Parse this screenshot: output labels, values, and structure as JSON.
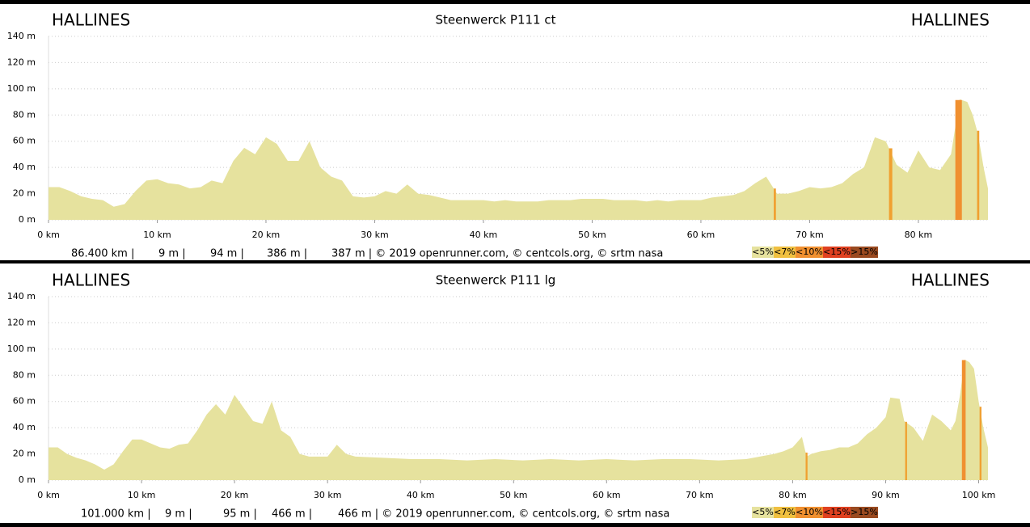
{
  "chart_data": [
    {
      "type": "area",
      "title": "Steenwerck P111 ct",
      "start_label": "HALLINES",
      "end_label": "HALLINES",
      "color": "#e6e29e",
      "x": [
        0,
        1,
        2,
        3,
        4,
        5,
        6,
        7,
        8,
        9,
        10,
        11,
        12,
        13,
        14,
        15,
        16,
        17,
        18,
        19,
        20,
        21,
        22,
        23,
        24,
        25,
        26,
        27,
        28,
        29,
        30,
        31,
        32,
        33,
        34,
        35,
        36,
        37,
        38,
        39,
        40,
        41,
        42,
        43,
        44,
        45,
        46,
        47,
        48,
        49,
        50,
        51,
        52,
        53,
        54,
        55,
        56,
        57,
        58,
        59,
        60,
        61,
        62,
        63,
        64,
        65,
        66,
        67,
        68,
        69,
        70,
        71,
        72,
        73,
        74,
        75,
        76,
        77,
        78,
        79,
        80,
        81,
        82,
        83,
        83.8,
        84.5,
        85,
        85.5,
        86,
        86.4
      ],
      "values": [
        25,
        25,
        22,
        18,
        16,
        15,
        10,
        12,
        22,
        30,
        31,
        28,
        27,
        24,
        25,
        30,
        28,
        45,
        55,
        50,
        63,
        58,
        45,
        45,
        60,
        40,
        33,
        30,
        18,
        17,
        18,
        22,
        20,
        27,
        20,
        19,
        17,
        15,
        15,
        15,
        15,
        14,
        15,
        14,
        14,
        14,
        15,
        15,
        15,
        16,
        16,
        16,
        15,
        15,
        15,
        14,
        15,
        14,
        15,
        15,
        15,
        17,
        18,
        19,
        22,
        28,
        33,
        20,
        20,
        22,
        25,
        24,
        25,
        28,
        35,
        40,
        63,
        60,
        42,
        36,
        53,
        40,
        38,
        50,
        92,
        90,
        80,
        65,
        40,
        24
      ],
      "steep_sections": [
        {
          "from": 66.7,
          "to": 66.9,
          "color": "#f0a030"
        },
        {
          "from": 77.3,
          "to": 77.6,
          "color": "#f0a030"
        },
        {
          "from": 83.4,
          "to": 84.0,
          "color": "#f09030"
        },
        {
          "from": 85.4,
          "to": 85.6,
          "color": "#f0a030"
        }
      ],
      "xlim": [
        0,
        86.4
      ],
      "ylim": [
        0,
        140
      ],
      "xticks": [
        {
          "value": 0,
          "label": "0 km"
        },
        {
          "value": 10,
          "label": "10 km"
        },
        {
          "value": 20,
          "label": "20 km"
        },
        {
          "value": 30,
          "label": "30 km"
        },
        {
          "value": 40,
          "label": "40 km"
        },
        {
          "value": 50,
          "label": "50 km"
        },
        {
          "value": 60,
          "label": "60 km"
        },
        {
          "value": 70,
          "label": "70 km"
        },
        {
          "value": 80,
          "label": "80 km"
        }
      ],
      "yticks": [
        {
          "value": 0,
          "label": "0 m"
        },
        {
          "value": 20,
          "label": "20 m"
        },
        {
          "value": 40,
          "label": "40 m"
        },
        {
          "value": 60,
          "label": "60 m"
        },
        {
          "value": 80,
          "label": "80 m"
        },
        {
          "value": 100,
          "label": "100 m"
        },
        {
          "value": 120,
          "label": "120 m"
        },
        {
          "value": 140,
          "label": "140 m"
        }
      ],
      "grid": true,
      "stats": [
        "86.400 km |",
        "9 m |",
        "94 m |",
        "386 m |",
        "387 m | © 2019 openrunner.com, © centcols.org, © srtm nasa"
      ],
      "legend": [
        {
          "label": "<5%",
          "color": "#e6e29e"
        },
        {
          "label": "<7%",
          "color": "#f0c040"
        },
        {
          "label": "<10%",
          "color": "#f09030"
        },
        {
          "label": "<15%",
          "color": "#e04020"
        },
        {
          "label": ">15%",
          "color": "#9a4a20"
        }
      ]
    },
    {
      "type": "area",
      "title": "Steenwerck P111 lg",
      "start_label": "HALLINES",
      "end_label": "HALLINES",
      "color": "#e6e29e",
      "x": [
        0,
        1,
        2,
        3,
        4,
        5,
        6,
        7,
        8,
        9,
        10,
        11,
        12,
        13,
        14,
        15,
        16,
        17,
        18,
        19,
        20,
        21,
        22,
        23,
        24,
        25,
        26,
        27,
        28,
        29,
        30,
        31,
        32,
        33,
        36,
        39,
        42,
        45,
        48,
        51,
        54,
        57,
        60,
        63,
        66,
        69,
        72,
        75,
        78,
        79,
        80,
        81,
        81.5,
        82,
        83,
        84,
        85,
        86,
        87,
        88,
        89,
        90,
        90.5,
        91.5,
        92,
        93,
        94,
        95,
        96,
        97,
        97.5,
        98,
        98.5,
        99,
        99.5,
        100,
        100.5,
        101
      ],
      "values": [
        25,
        25,
        20,
        17,
        15,
        12,
        8,
        12,
        22,
        31,
        31,
        28,
        25,
        24,
        27,
        28,
        38,
        50,
        58,
        50,
        65,
        55,
        45,
        43,
        60,
        38,
        33,
        20,
        18,
        18,
        18,
        27,
        20,
        18,
        17,
        16,
        16,
        15,
        16,
        15,
        16,
        15,
        16,
        15,
        16,
        16,
        15,
        16,
        20,
        22,
        25,
        33,
        18,
        20,
        22,
        23,
        25,
        25,
        28,
        35,
        40,
        48,
        63,
        62,
        45,
        40,
        30,
        50,
        45,
        38,
        45,
        65,
        92,
        90,
        85,
        60,
        40,
        25
      ],
      "steep_sections": [
        {
          "from": 81.4,
          "to": 81.6,
          "color": "#f0a030"
        },
        {
          "from": 92.1,
          "to": 92.3,
          "color": "#f0a030"
        },
        {
          "from": 98.2,
          "to": 98.6,
          "color": "#f09030"
        },
        {
          "from": 100.1,
          "to": 100.3,
          "color": "#f0a030"
        }
      ],
      "xlim": [
        0,
        101
      ],
      "ylim": [
        0,
        140
      ],
      "xticks": [
        {
          "value": 0,
          "label": "0 km"
        },
        {
          "value": 10,
          "label": "10 km"
        },
        {
          "value": 20,
          "label": "20 km"
        },
        {
          "value": 30,
          "label": "30 km"
        },
        {
          "value": 40,
          "label": "40 km"
        },
        {
          "value": 50,
          "label": "50 km"
        },
        {
          "value": 60,
          "label": "60 km"
        },
        {
          "value": 70,
          "label": "70 km"
        },
        {
          "value": 80,
          "label": "80 km"
        },
        {
          "value": 90,
          "label": "90 km"
        },
        {
          "value": 100,
          "label": "100 km"
        }
      ],
      "yticks": [
        {
          "value": 0,
          "label": "0 m"
        },
        {
          "value": 20,
          "label": "20 m"
        },
        {
          "value": 40,
          "label": "40 m"
        },
        {
          "value": 60,
          "label": "60 m"
        },
        {
          "value": 80,
          "label": "80 m"
        },
        {
          "value": 100,
          "label": "100 m"
        },
        {
          "value": 120,
          "label": "120 m"
        },
        {
          "value": 140,
          "label": "140 m"
        }
      ],
      "grid": true,
      "stats": [
        "101.000 km |",
        "9 m |",
        "95 m |",
        "466 m |",
        "466 m | © 2019 openrunner.com, © centcols.org, © srtm nasa"
      ],
      "legend": [
        {
          "label": "<5%",
          "color": "#e6e29e"
        },
        {
          "label": "<7%",
          "color": "#f0c040"
        },
        {
          "label": "<10%",
          "color": "#f09030"
        },
        {
          "label": "<15%",
          "color": "#e04020"
        },
        {
          "label": ">15%",
          "color": "#9a4a20"
        }
      ]
    }
  ]
}
